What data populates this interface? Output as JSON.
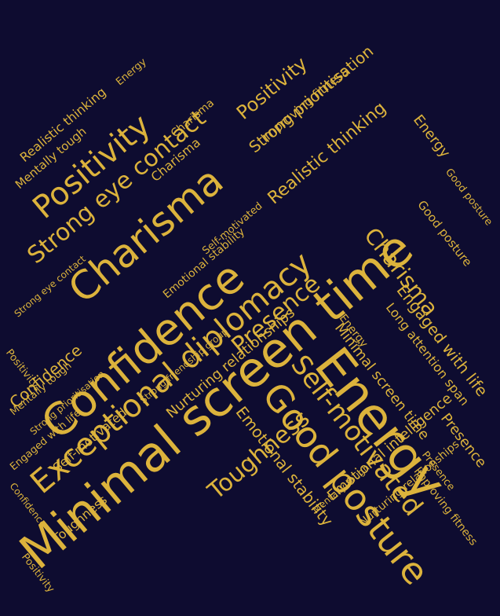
{
  "palette": {
    "background": "#0e0c30",
    "text": "#dcb33c"
  },
  "words": [
    "Minimal screen time",
    "Energy",
    "Exceptional diplomacy",
    "Confidence",
    "Charisma",
    "Good posture",
    "Self-motivated",
    "Presence",
    "Positivity",
    "Strong eye contact",
    "Emotional intelligence",
    "Emotional stability",
    "Strong prioritisation",
    "Realistic thinking",
    "Improving fitness",
    "Mentally tough",
    "Toughness",
    "Nurturing relationships",
    "Engaged with life",
    "Long attention span",
    "Strong friendship group",
    "Self-motivated",
    "Charisma",
    "Energy",
    "Positivity",
    "Presence",
    "Confidence",
    "Realistic thinking",
    "Mentally tough",
    "Charisma",
    "Engaged with life",
    "Minimal screen time",
    "Toughness",
    "Good posture",
    "Energy",
    "Positivity",
    "Improving fitness",
    "Nurturing relationships",
    "Emotional stability",
    "Strong eye contact",
    "Confidence",
    "Self-motivated",
    "Presence",
    "Good posture",
    "Energy",
    "Strong prioritisation",
    "Mentally tough",
    "Charisma",
    "Positivity"
  ]
}
